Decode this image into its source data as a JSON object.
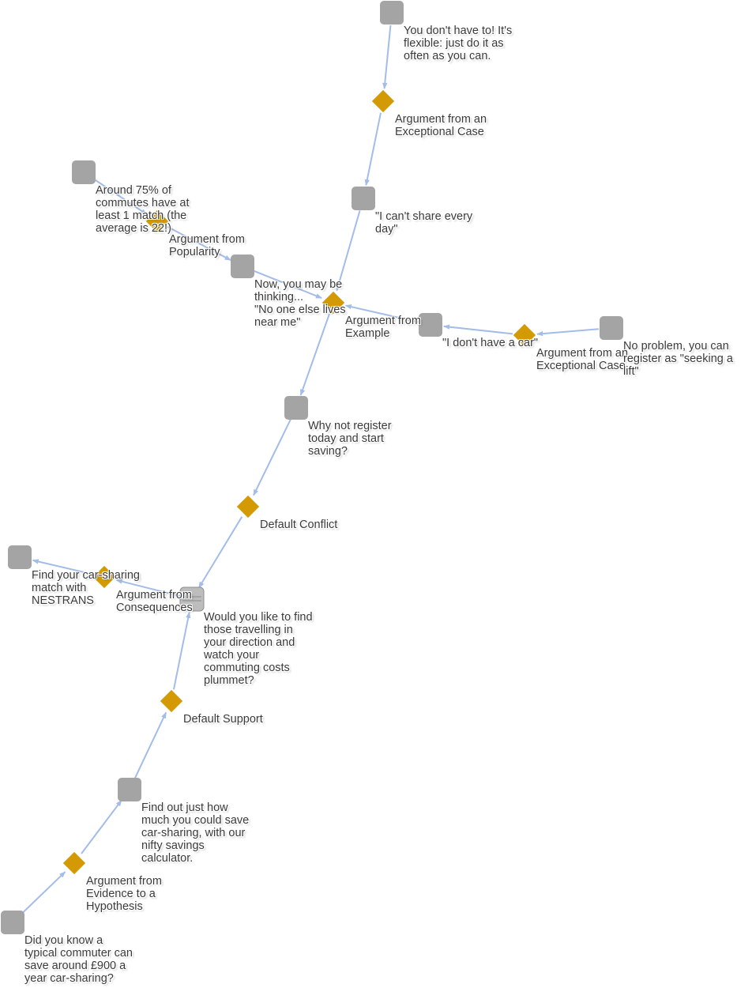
{
  "colors": {
    "edge": "#a3bce8",
    "node": "#a4a4a4",
    "scheme": "#d49a06",
    "text": "#3a3a3a"
  },
  "nodes": [
    {
      "id": "n1",
      "kind": "statement",
      "text": "You don't have to! It's\nflexible: just do it as\noften as you can."
    },
    {
      "id": "s1",
      "kind": "scheme",
      "text": "Argument from an\nExceptional Case"
    },
    {
      "id": "n2",
      "kind": "statement",
      "text": "\"I can't share every\nday\""
    },
    {
      "id": "n3",
      "kind": "statement",
      "text": "Around 75% of\ncommutes have at\nleast 1 match (the\naverage is 22!)"
    },
    {
      "id": "s2",
      "kind": "scheme",
      "text": "Argument from\nPopularity"
    },
    {
      "id": "n4",
      "kind": "statement",
      "text": "Now, you may be\nthinking...\n\"No one else lives\nnear me\""
    },
    {
      "id": "s3",
      "kind": "scheme",
      "text": "Argument from\nExample"
    },
    {
      "id": "n5",
      "kind": "statement",
      "text": "\"I don't have a car\""
    },
    {
      "id": "s4",
      "kind": "scheme",
      "text": "Argument from an\nExceptional Case"
    },
    {
      "id": "n6",
      "kind": "statement",
      "text": "No problem, you can\nregister as \"seeking a\nlift\""
    },
    {
      "id": "n7",
      "kind": "statement",
      "text": "Why not register\ntoday and start\nsaving?"
    },
    {
      "id": "s5",
      "kind": "scheme",
      "text": "Default Conflict"
    },
    {
      "id": "n8",
      "kind": "statement",
      "text": "Find your car-sharing\nmatch with\nNESTRANS"
    },
    {
      "id": "s6",
      "kind": "scheme",
      "text": "Argument from\nConsequences"
    },
    {
      "id": "n9",
      "kind": "statement",
      "text": "Would you like to find\nthose travelling in\nyour direction and\nwatch your\ncommuting costs\nplummet?"
    },
    {
      "id": "s7",
      "kind": "scheme",
      "text": "Default Support"
    },
    {
      "id": "n10",
      "kind": "statement",
      "text": "Find out just how\nmuch you could save\ncar-sharing, with our\nnifty savings\ncalculator."
    },
    {
      "id": "s8",
      "kind": "scheme",
      "text": "Argument from\nEvidence to a\nHypothesis"
    },
    {
      "id": "n11",
      "kind": "statement",
      "text": "Did you know a\ntypical commuter can\nsave around £900 a\nyear car-sharing?"
    }
  ],
  "edges": [
    {
      "from": "n1",
      "to": "s1"
    },
    {
      "from": "s1",
      "to": "n2"
    },
    {
      "from": "n2",
      "to": "s3"
    },
    {
      "from": "n3",
      "to": "s2"
    },
    {
      "from": "s2",
      "to": "n4"
    },
    {
      "from": "n4",
      "to": "s3"
    },
    {
      "from": "n5",
      "to": "s3"
    },
    {
      "from": "n6",
      "to": "s4"
    },
    {
      "from": "s4",
      "to": "n5"
    },
    {
      "from": "s3",
      "to": "n7"
    },
    {
      "from": "n7",
      "to": "s5"
    },
    {
      "from": "s5",
      "to": "n9"
    },
    {
      "from": "n9",
      "to": "s6"
    },
    {
      "from": "s6",
      "to": "n8"
    },
    {
      "from": "n10",
      "to": "s7"
    },
    {
      "from": "s7",
      "to": "n9"
    },
    {
      "from": "n11",
      "to": "s8"
    },
    {
      "from": "s8",
      "to": "n10"
    }
  ]
}
